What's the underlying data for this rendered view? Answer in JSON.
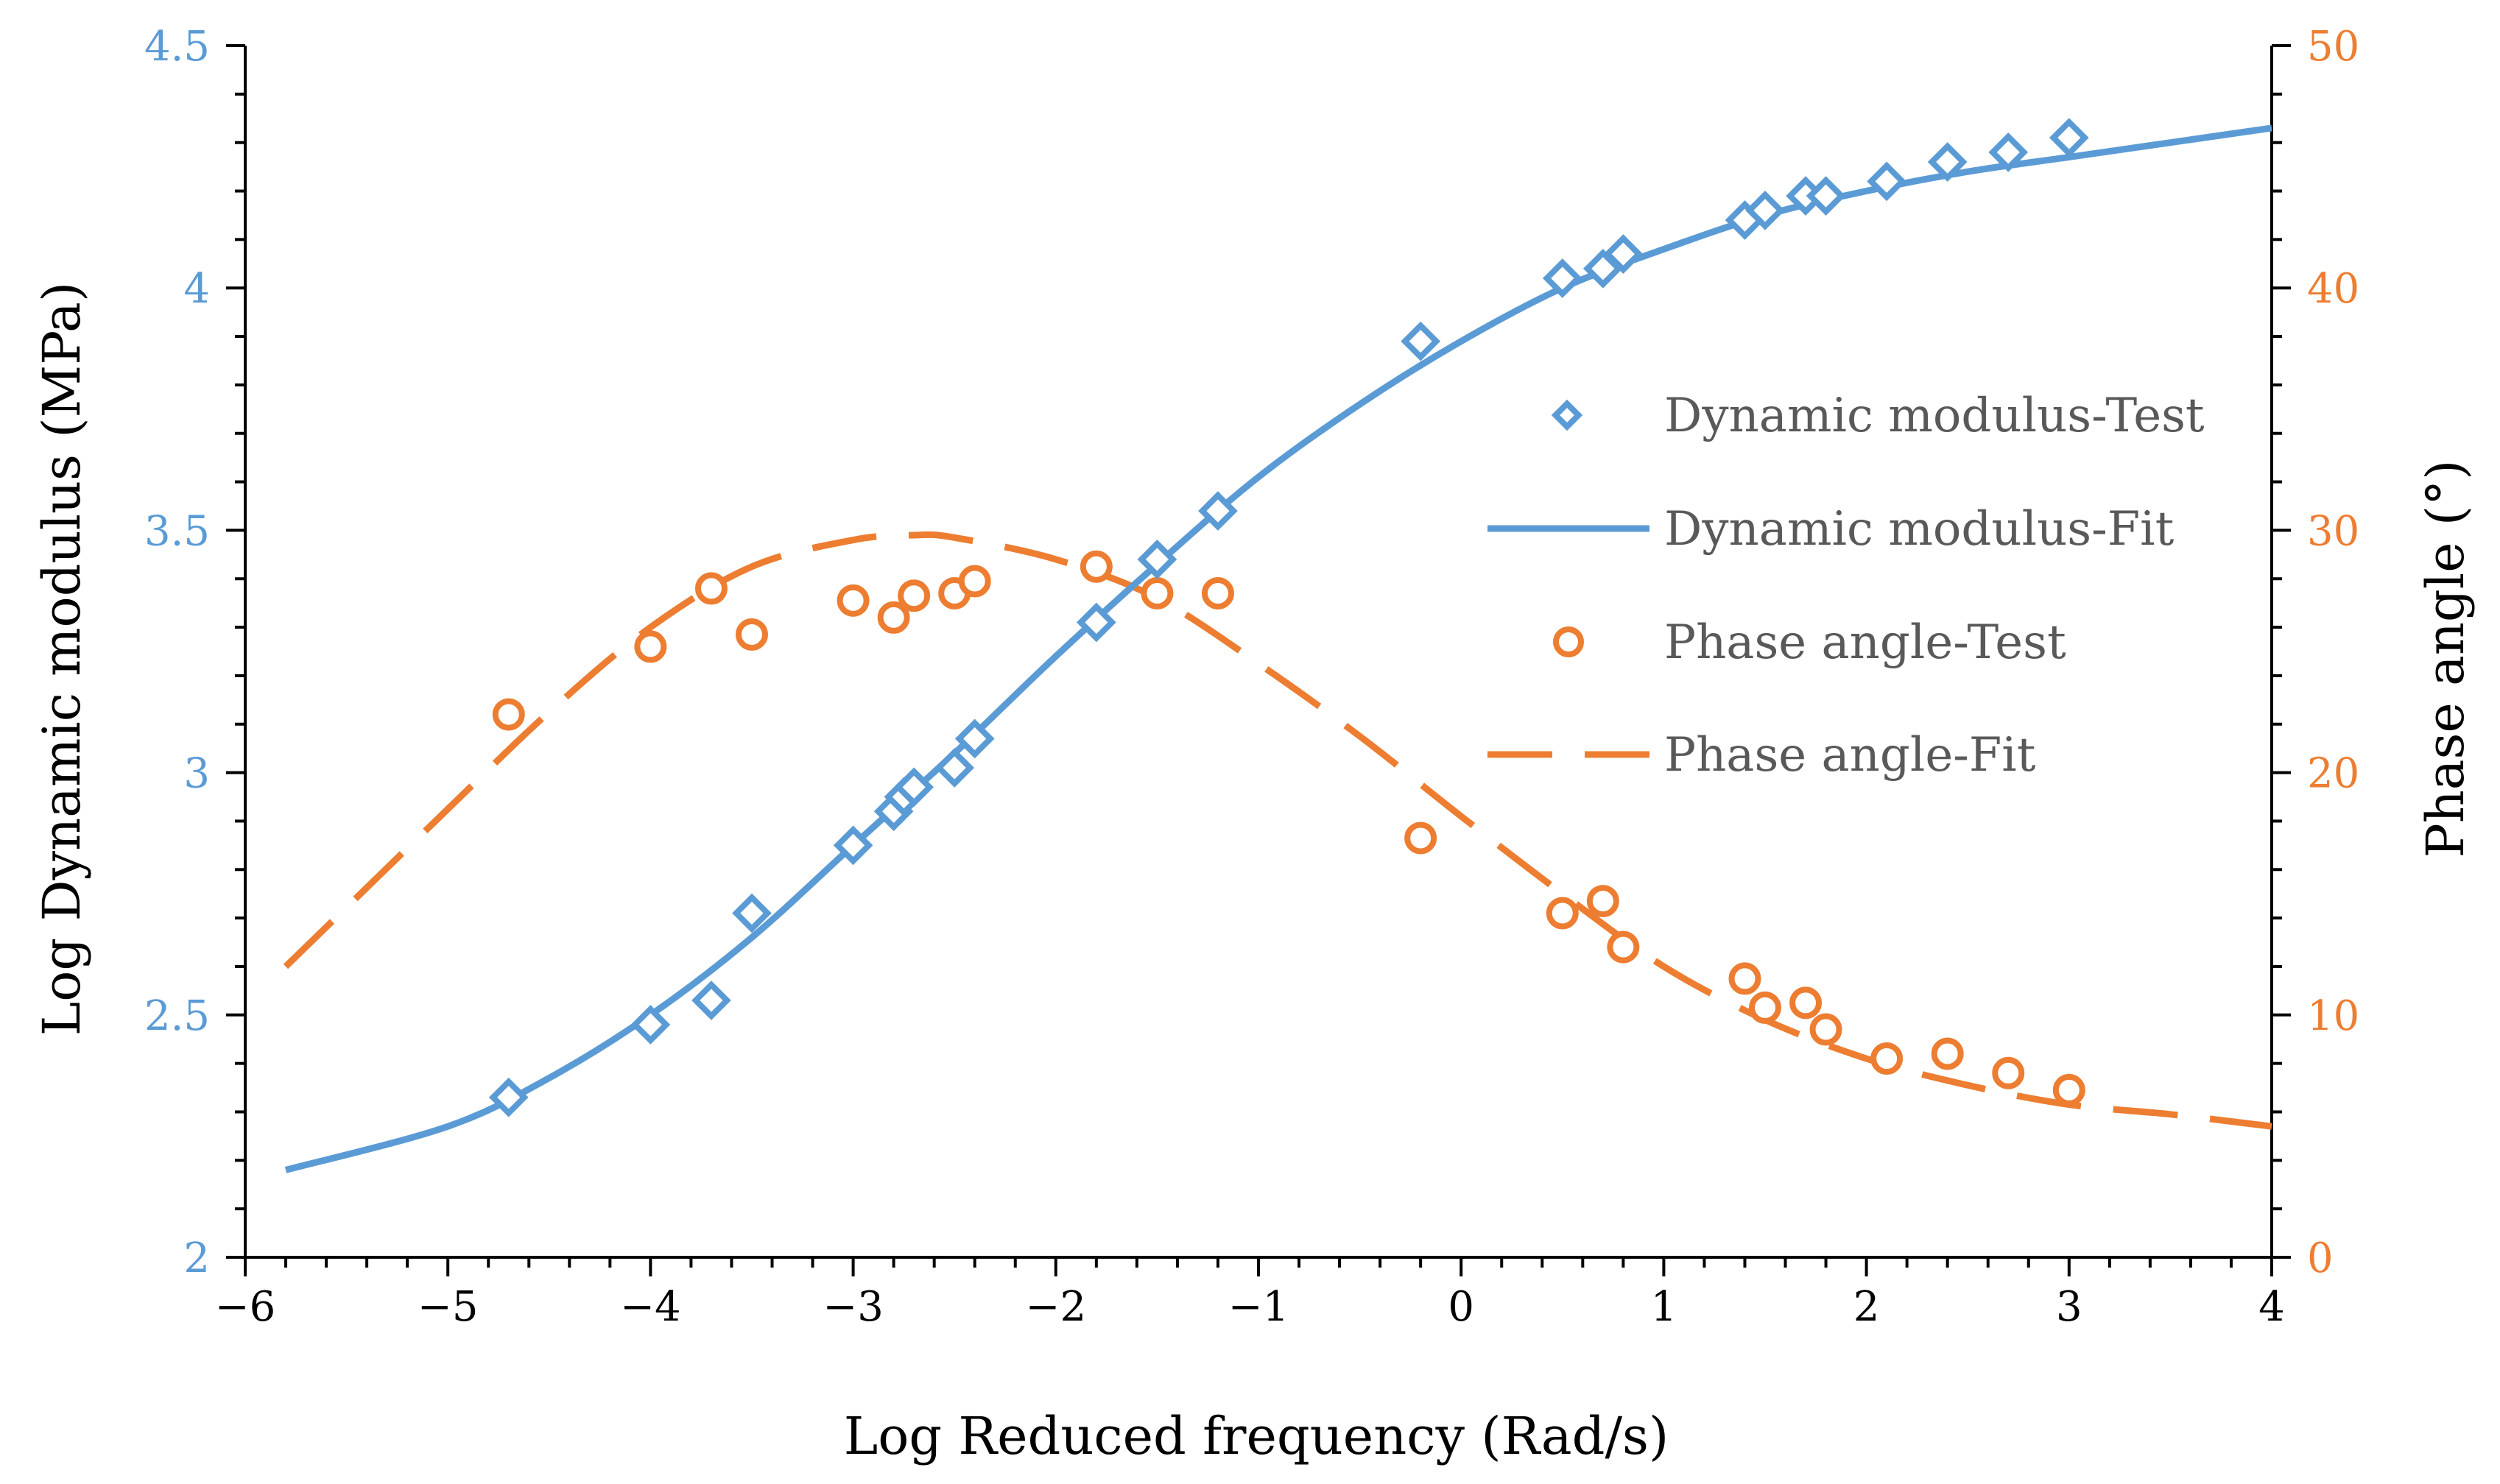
{
  "chart_data": {
    "type": "scatter",
    "title": "",
    "xlabel": "Log Reduced frequency (Rad/s)",
    "ylabel": "Log Dynamic modulus (MPa)",
    "y2label": "Phase angle (°)",
    "xlim": [
      -6,
      4
    ],
    "ylim": [
      2,
      4.5
    ],
    "y2lim": [
      0,
      50
    ],
    "x_ticks": [
      "−6",
      "−5",
      "−4",
      "−3",
      "−2",
      "−1",
      "0",
      "1",
      "2",
      "3",
      "4"
    ],
    "y_ticks": [
      "2",
      "2.5",
      "3",
      "3.5",
      "4",
      "4.5"
    ],
    "y2_ticks": [
      "0",
      "10",
      "20",
      "30",
      "40",
      "50"
    ],
    "grid": false,
    "legend_position": "right-center",
    "colors": {
      "modulus": "#5B9BD5",
      "phase": "#ED7D31",
      "axis": "#000000"
    },
    "series": [
      {
        "name": "Dynamic modulus-Test",
        "kind": "markers",
        "marker": "diamond",
        "axis": "left",
        "x": [
          -4.7,
          -4.0,
          -3.7,
          -3.5,
          -3.0,
          -2.8,
          -2.75,
          -2.7,
          -2.5,
          -2.4,
          -1.8,
          -1.5,
          -1.2,
          -0.2,
          0.5,
          0.7,
          0.8,
          1.4,
          1.5,
          1.7,
          1.8,
          2.1,
          2.4,
          2.7,
          3.0
        ],
        "y": [
          2.33,
          2.48,
          2.53,
          2.71,
          2.85,
          2.92,
          2.95,
          2.97,
          3.01,
          3.07,
          3.31,
          3.44,
          3.54,
          3.89,
          4.02,
          4.04,
          4.07,
          4.14,
          4.16,
          4.19,
          4.19,
          4.22,
          4.26,
          4.28,
          4.31
        ]
      },
      {
        "name": "Dynamic modulus-Fit",
        "kind": "line",
        "style": "solid",
        "axis": "left",
        "x": [
          -5.8,
          -5.0,
          -4.5,
          -4.0,
          -3.5,
          -3.0,
          -2.5,
          -2.0,
          -1.5,
          -1.0,
          -0.5,
          0.0,
          0.5,
          1.0,
          1.5,
          2.0,
          2.5,
          3.0,
          3.5,
          4.0
        ],
        "y": [
          2.18,
          2.27,
          2.37,
          2.5,
          2.66,
          2.85,
          3.04,
          3.24,
          3.43,
          3.61,
          3.76,
          3.89,
          4.0,
          4.08,
          4.15,
          4.2,
          4.24,
          4.27,
          4.3,
          4.33
        ]
      },
      {
        "name": "Phase angle-Test",
        "kind": "markers",
        "marker": "circle",
        "axis": "right",
        "x": [
          -4.7,
          -4.0,
          -3.7,
          -3.5,
          -3.0,
          -2.8,
          -2.7,
          -2.5,
          -2.4,
          -1.8,
          -1.5,
          -1.2,
          -0.2,
          0.5,
          0.7,
          0.8,
          1.4,
          1.5,
          1.7,
          1.8,
          2.1,
          2.4,
          2.7,
          3.0
        ],
        "y": [
          22.4,
          25.2,
          27.6,
          25.7,
          27.1,
          26.4,
          27.3,
          27.4,
          27.9,
          28.5,
          27.4,
          27.4,
          17.3,
          14.2,
          14.7,
          12.8,
          11.5,
          10.3,
          10.5,
          9.4,
          8.2,
          8.4,
          7.6,
          6.9
        ]
      },
      {
        "name": "Phase angle-Fit",
        "kind": "line",
        "style": "dashed",
        "axis": "right",
        "x": [
          -5.8,
          -5.0,
          -4.5,
          -4.0,
          -3.5,
          -3.0,
          -2.7,
          -2.5,
          -2.0,
          -1.5,
          -1.0,
          -0.5,
          0.0,
          0.5,
          1.0,
          1.5,
          2.0,
          2.5,
          3.0,
          3.5,
          4.0
        ],
        "y": [
          12.0,
          18.5,
          22.5,
          26.0,
          28.5,
          29.6,
          29.8,
          29.7,
          28.8,
          27.2,
          24.5,
          21.5,
          18.2,
          15.0,
          12.0,
          9.8,
          8.2,
          7.1,
          6.3,
          5.9,
          5.4
        ]
      }
    ]
  }
}
